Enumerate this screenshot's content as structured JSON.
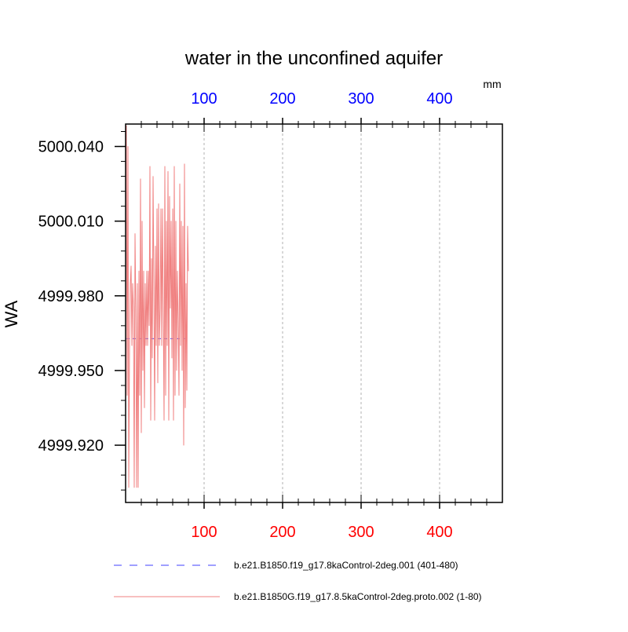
{
  "chart_data": {
    "type": "line",
    "title": "water in the unconfined aquifer",
    "ylabel": "WA",
    "top_axis_unit": "mm",
    "xlim": [
      0,
      480
    ],
    "ylim": [
      4999.897,
      5000.049
    ],
    "x_ticks_bottom": [
      100,
      200,
      300,
      400
    ],
    "x_ticks_top": [
      100,
      200,
      300,
      400
    ],
    "y_ticks": [
      5000.04,
      5000.01,
      4999.98,
      4999.95,
      4999.92
    ],
    "y_tick_labels": [
      "5000.040",
      "5000.010",
      "4999.980",
      "4999.950",
      "4999.920"
    ],
    "grid_x": true,
    "grid_y": false,
    "legend_position": "bottom",
    "colors": {
      "bottom_tick_labels": "#ff0000",
      "top_tick_labels": "#0000ff",
      "series_red": "#f08080",
      "series_blue": "#4040ff",
      "grid": "#b0b0b0"
    },
    "series": [
      {
        "name": "b.e21.B1850.f19_g17.8kaControl-2deg.001 (401-480)",
        "color": "#4040ff",
        "dash": "dashed",
        "x": [
          1,
          78
        ],
        "values": [
          4999.9628,
          4999.9628
        ]
      },
      {
        "name": "b.e21.B1850G.f19_g17.8.5kaControl-2deg.proto.002 (1-80)",
        "color": "#f08080",
        "dash": "solid",
        "x": [
          1,
          2,
          3,
          4,
          5,
          6,
          7,
          8,
          9,
          10,
          11,
          12,
          13,
          14,
          15,
          16,
          17,
          18,
          19,
          20,
          21,
          22,
          23,
          24,
          25,
          26,
          27,
          28,
          29,
          30,
          31,
          32,
          33,
          34,
          35,
          36,
          37,
          38,
          39,
          40,
          41,
          42,
          43,
          44,
          45,
          46,
          47,
          48,
          49,
          50,
          51,
          52,
          53,
          54,
          55,
          56,
          57,
          58,
          59,
          60,
          61,
          62,
          63,
          64,
          65,
          66,
          67,
          68,
          69,
          70,
          71,
          72,
          73,
          74,
          75,
          76,
          77,
          78,
          79,
          80
        ],
        "values": [
          5000.049,
          4999.94,
          5000.04,
          4999.903,
          4999.96,
          4999.985,
          4999.992,
          4999.96,
          4999.985,
          4999.975,
          4999.903,
          5000.005,
          4999.975,
          4999.903,
          4999.985,
          4999.903,
          4999.99,
          4999.94,
          5000.027,
          4999.925,
          5000.01,
          4999.95,
          4999.99,
          4999.935,
          4999.985,
          4999.96,
          4999.99,
          4999.96,
          4999.99,
          4999.968,
          5000.032,
          4999.93,
          4999.995,
          4999.955,
          5000.028,
          4999.985,
          4999.93,
          5000.0,
          4999.96,
          5000.015,
          4999.945,
          5000.017,
          4999.96,
          4999.975,
          5000.015,
          4999.96,
          5000.015,
          4999.975,
          4999.93,
          5000.032,
          4999.94,
          5000.01,
          4999.96,
          5000.03,
          4999.93,
          5000.02,
          4999.975,
          5000.01,
          4999.955,
          5000.015,
          4999.93,
          5000.032,
          4999.94,
          5000.01,
          4999.95,
          4999.99,
          4999.97,
          4999.94,
          5000.025,
          4999.96,
          5000.01,
          4999.95,
          5000.008,
          4999.92,
          5000.033,
          4999.935,
          4999.985,
          4999.942,
          5000.008,
          4999.99
        ]
      }
    ]
  }
}
